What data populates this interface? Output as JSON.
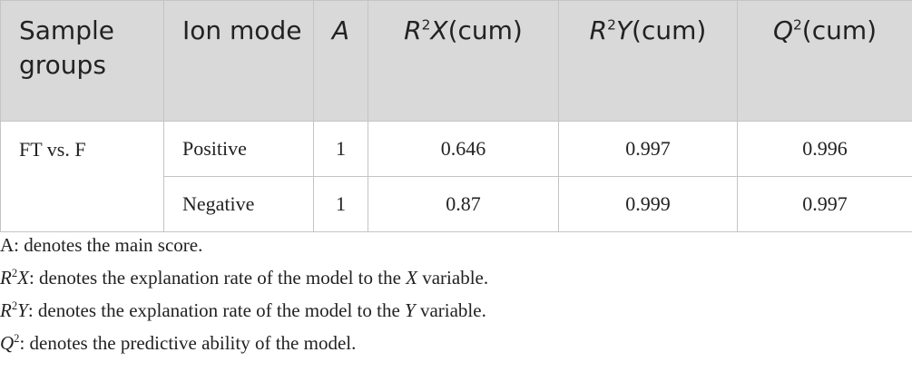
{
  "table": {
    "header": [
      [
        "Sample groups"
      ],
      [
        "Ion mode"
      ],
      [
        "A"
      ],
      [
        "R",
        "2",
        "X",
        "(cum)"
      ],
      [
        "R",
        "2",
        "Y",
        "(cum)"
      ],
      [
        "Q",
        "2",
        "(cum)"
      ]
    ],
    "rows": [
      [
        "FT vs. F",
        "Positive",
        1,
        0.646,
        0.997,
        0.996
      ],
      [
        "Negative",
        1,
        0.87,
        0.999,
        0.997
      ]
    ]
  },
  "notes": [
    [
      "A",
      ": denotes the main score."
    ],
    [
      "R",
      "2",
      "X",
      ": denotes the explanation rate of the model to the ",
      "X",
      " variable."
    ],
    [
      "R",
      "2",
      "Y",
      ": denotes the explanation rate of the model to the ",
      "Y",
      " variable."
    ],
    [
      "Q",
      "2",
      ": denotes the predictive ability of the model."
    ]
  ]
}
